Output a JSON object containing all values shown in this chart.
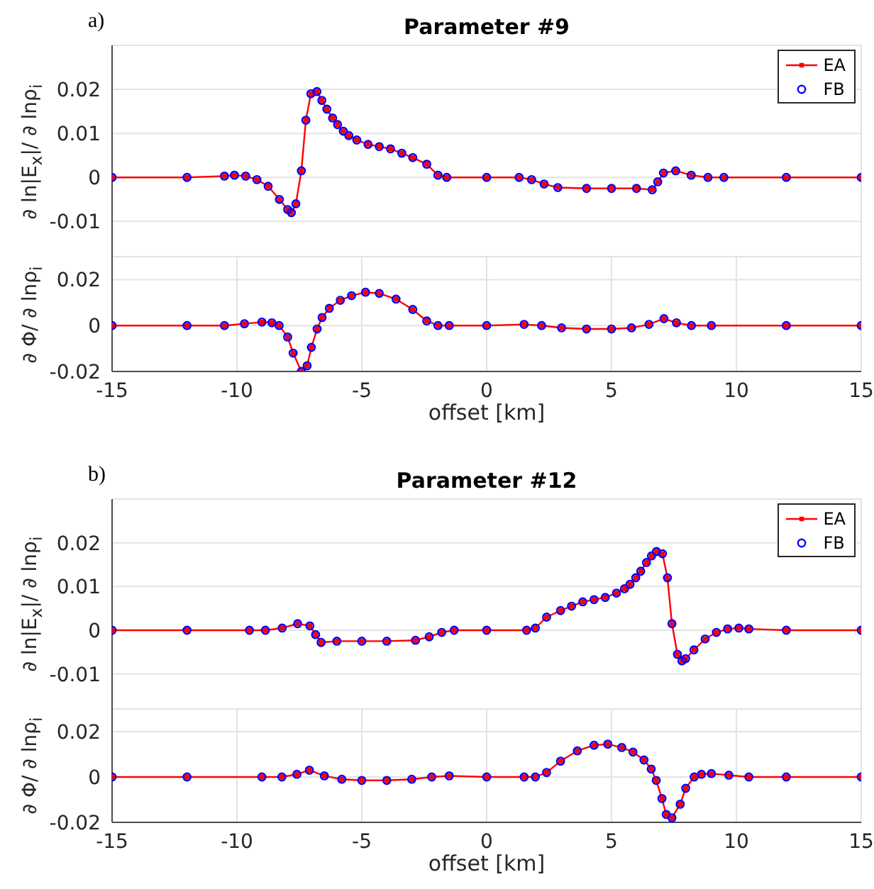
{
  "chart_data": [
    {
      "type": "line",
      "title": "Parameter #9",
      "ylabel": "∂ ln|E$_{x}$|/ ∂ lnρ$_{i}$",
      "annotations": [
        "a)"
      ],
      "xlim": [
        -15,
        15
      ],
      "xticks": [
        -15,
        -10,
        -5,
        0,
        5,
        10,
        15
      ],
      "ylim": [
        -0.018,
        0.03
      ],
      "yticks": [
        -0.01,
        0,
        0.01,
        0.02
      ],
      "grid": true,
      "legend": "top right",
      "tick_labels": "y",
      "line_style": "solid",
      "x": [
        -15,
        -12,
        -10.5,
        -10.1,
        -9.65,
        -9.2,
        -8.75,
        -8.3,
        -7.97,
        -7.82,
        -7.64,
        -7.42,
        -7.24,
        -7.04,
        -6.8,
        -6.6,
        -6.4,
        -6.17,
        -5.97,
        -5.74,
        -5.52,
        -5.2,
        -4.75,
        -4.3,
        -3.85,
        -3.4,
        -2.96,
        -2.4,
        -1.95,
        -1.6,
        0,
        1.3,
        1.8,
        2.3,
        2.85,
        4,
        5,
        6,
        6.63,
        6.85,
        7.08,
        7.57,
        8.19,
        8.86,
        9.5,
        12,
        15
      ],
      "series": [
        {
          "name": "EA",
          "marker": "square",
          "color": "#ff0000",
          "values": [
            0,
            0,
            0.0003,
            0.0005,
            0.0003,
            -0.0005,
            -0.002,
            -0.005,
            -0.0073,
            -0.008,
            -0.006,
            0.0015,
            0.013,
            0.019,
            0.0195,
            0.0175,
            0.0155,
            0.0135,
            0.012,
            0.0105,
            0.0095,
            0.0085,
            0.0075,
            0.007,
            0.0065,
            0.0055,
            0.0045,
            0.003,
            0.0005,
            0,
            0,
            0,
            -0.0005,
            -0.0015,
            -0.0023,
            -0.0025,
            -0.0025,
            -0.0025,
            -0.0028,
            -0.001,
            0.001,
            0.0015,
            0.0005,
            0,
            0,
            0,
            0
          ]
        },
        {
          "name": "FB",
          "type": "scatter",
          "marker": "circle",
          "color": "#0000ff",
          "values": [
            0,
            0,
            0.0003,
            0.0005,
            0.0003,
            -0.0005,
            -0.002,
            -0.005,
            -0.0073,
            -0.008,
            -0.006,
            0.0015,
            0.013,
            0.019,
            0.0195,
            0.0175,
            0.0155,
            0.0135,
            0.012,
            0.0105,
            0.0095,
            0.0085,
            0.0075,
            0.007,
            0.0065,
            0.0055,
            0.0045,
            0.003,
            0.0005,
            0,
            0,
            0,
            -0.0005,
            -0.0015,
            -0.0023,
            -0.0025,
            -0.0025,
            -0.0025,
            -0.0028,
            -0.001,
            0.001,
            0.0015,
            0.0005,
            0,
            0,
            0,
            0
          ]
        }
      ]
    },
    {
      "type": "line",
      "ylabel": "∂ Φ/ ∂ lnρ$_{i}$",
      "xlabel": "offset [km]",
      "xlim": [
        -15,
        15
      ],
      "xticks": [
        -15,
        -10,
        -5,
        0,
        5,
        10,
        15
      ],
      "ylim": [
        -0.02,
        0.03
      ],
      "yticks": [
        -0.02,
        0,
        0.02
      ],
      "grid": true,
      "line_style": "solid",
      "x": [
        -15,
        -12,
        -10.5,
        -9.7,
        -9,
        -8.6,
        -8.31,
        -7.97,
        -7.75,
        -7.42,
        -7.19,
        -7.02,
        -6.79,
        -6.59,
        -6.3,
        -5.86,
        -5.41,
        -4.85,
        -4.3,
        -3.63,
        -2.96,
        -2.4,
        -1.95,
        -1.5,
        0,
        1.5,
        2.2,
        3,
        4,
        5,
        5.8,
        6.5,
        7.1,
        7.6,
        8.2,
        9,
        12,
        15
      ],
      "series": [
        {
          "marker": "square",
          "color": "#ff0000",
          "values": [
            0,
            0,
            0,
            0.0008,
            0.0015,
            0.0012,
            0,
            -0.005,
            -0.012,
            -0.02,
            -0.0175,
            -0.0095,
            -0.0015,
            0.0035,
            0.0075,
            0.011,
            0.013,
            0.0145,
            0.014,
            0.0115,
            0.007,
            0.002,
            0,
            0,
            0,
            0.0005,
            0,
            -0.001,
            -0.0015,
            -0.0015,
            -0.001,
            0.0005,
            0.003,
            0.0012,
            0,
            0,
            0,
            0
          ]
        },
        {
          "type": "scatter",
          "marker": "circle",
          "color": "#0000ff",
          "values": [
            0,
            0,
            0,
            0.0008,
            0.0015,
            0.0012,
            0,
            -0.005,
            -0.012,
            -0.02,
            -0.0175,
            -0.0095,
            -0.0015,
            0.0035,
            0.0075,
            0.011,
            0.013,
            0.0145,
            0.014,
            0.0115,
            0.007,
            0.002,
            0,
            0,
            0,
            0.0005,
            0,
            -0.001,
            -0.0015,
            -0.0015,
            -0.001,
            0.0005,
            0.003,
            0.0012,
            0,
            0,
            0,
            0
          ]
        }
      ]
    },
    {
      "type": "line",
      "title": "Parameter #12",
      "ylabel": "∂ ln|E$_{x}$|/ ∂ lnρ$_{i}$",
      "annotations": [
        "b)"
      ],
      "xlim": [
        -15,
        15
      ],
      "xticks": [
        -15,
        -10,
        -5,
        0,
        5,
        10,
        15
      ],
      "ylim": [
        -0.018,
        0.03
      ],
      "yticks": [
        -0.01,
        0,
        0.01,
        0.02
      ],
      "grid": true,
      "legend": "top right",
      "tick_labels": "y",
      "line_style": "solid",
      "x": [
        -15,
        -12,
        -9.5,
        -8.86,
        -8.19,
        -7.57,
        -7.08,
        -6.85,
        -6.63,
        -6,
        -5,
        -4,
        -2.85,
        -2.3,
        -1.8,
        -1.3,
        0,
        1.6,
        1.95,
        2.4,
        2.96,
        3.4,
        3.85,
        4.3,
        4.75,
        5.2,
        5.52,
        5.74,
        5.97,
        6.17,
        6.4,
        6.6,
        6.8,
        7.04,
        7.24,
        7.42,
        7.64,
        7.82,
        7.97,
        8.3,
        8.75,
        9.2,
        9.65,
        10.1,
        10.5,
        12,
        15
      ],
      "series": [
        {
          "name": "EA",
          "marker": "square",
          "color": "#ff0000",
          "values": [
            0,
            0,
            0,
            0,
            0.0005,
            0.0015,
            0.001,
            -0.001,
            -0.0028,
            -0.0025,
            -0.0025,
            -0.0025,
            -0.0023,
            -0.0015,
            -0.0005,
            0,
            0,
            0,
            0.0005,
            0.003,
            0.0045,
            0.0055,
            0.0065,
            0.007,
            0.0075,
            0.0085,
            0.0095,
            0.0105,
            0.012,
            0.0135,
            0.0155,
            0.017,
            0.018,
            0.0175,
            0.012,
            0.0015,
            -0.0055,
            -0.007,
            -0.0065,
            -0.0045,
            -0.002,
            -0.0005,
            0.0003,
            0.0005,
            0.0003,
            0,
            0
          ]
        },
        {
          "name": "FB",
          "type": "scatter",
          "marker": "circle",
          "color": "#0000ff",
          "values": [
            0,
            0,
            0,
            0,
            0.0005,
            0.0015,
            0.001,
            -0.001,
            -0.0028,
            -0.0025,
            -0.0025,
            -0.0025,
            -0.0023,
            -0.0015,
            -0.0005,
            0,
            0,
            0,
            0.0005,
            0.003,
            0.0045,
            0.0055,
            0.0065,
            0.007,
            0.0075,
            0.0085,
            0.0095,
            0.0105,
            0.012,
            0.0135,
            0.0155,
            0.017,
            0.018,
            0.0175,
            0.012,
            0.0015,
            -0.0055,
            -0.007,
            -0.0065,
            -0.0045,
            -0.002,
            -0.0005,
            0.0003,
            0.0005,
            0.0003,
            0,
            0
          ]
        }
      ]
    },
    {
      "type": "line",
      "ylabel": "∂ Φ/ ∂ lnρ$_{i}$",
      "xlabel": "offset [km]",
      "xlim": [
        -15,
        15
      ],
      "xticks": [
        -15,
        -10,
        -5,
        0,
        5,
        10,
        15
      ],
      "ylim": [
        -0.02,
        0.03
      ],
      "yticks": [
        -0.02,
        0,
        0.02
      ],
      "grid": true,
      "line_style": "solid",
      "x": [
        -15,
        -12,
        -9,
        -8.2,
        -7.6,
        -7.1,
        -6.5,
        -5.8,
        -5,
        -4,
        -3,
        -2.2,
        -1.5,
        0,
        1.5,
        1.95,
        2.4,
        2.96,
        3.63,
        4.3,
        4.85,
        5.41,
        5.86,
        6.3,
        6.59,
        6.79,
        7.02,
        7.19,
        7.42,
        7.75,
        7.97,
        8.31,
        8.6,
        9,
        9.7,
        10.5,
        12,
        15
      ],
      "series": [
        {
          "marker": "square",
          "color": "#ff0000",
          "values": [
            0,
            0,
            0,
            0,
            0.0012,
            0.003,
            0.0005,
            -0.001,
            -0.0015,
            -0.0015,
            -0.001,
            0,
            0.0005,
            0,
            0,
            0,
            0.002,
            0.007,
            0.0115,
            0.014,
            0.0145,
            0.013,
            0.011,
            0.0075,
            0.0035,
            -0.0015,
            -0.0095,
            -0.0165,
            -0.018,
            -0.012,
            -0.005,
            0,
            0.0012,
            0.0015,
            0.0008,
            0,
            0,
            0
          ]
        },
        {
          "type": "scatter",
          "marker": "circle",
          "color": "#0000ff",
          "values": [
            0,
            0,
            0,
            0,
            0.0012,
            0.003,
            0.0005,
            -0.001,
            -0.0015,
            -0.0015,
            -0.001,
            0,
            0.0005,
            0,
            0,
            0,
            0.002,
            0.007,
            0.0115,
            0.014,
            0.0145,
            0.013,
            0.011,
            0.0075,
            0.0035,
            -0.0015,
            -0.0095,
            -0.0165,
            -0.018,
            -0.012,
            -0.005,
            0,
            0.0012,
            0.0015,
            0.0008,
            0,
            0,
            0
          ]
        }
      ]
    }
  ]
}
